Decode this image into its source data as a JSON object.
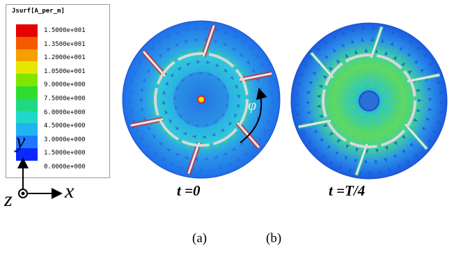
{
  "legend": {
    "title": "Jsurf[A_per_m]",
    "ticks": [
      "1.5000e+001",
      "1.3500e+001",
      "1.2000e+001",
      "1.0500e+001",
      "9.0000e+000",
      "7.5000e+000",
      "6.0000e+000",
      "4.5000e+000",
      "3.0000e+000",
      "1.5000e+000",
      "0.0000e+000"
    ],
    "colors": [
      "#e60000",
      "#f55a00",
      "#f5a000",
      "#e6e600",
      "#80e600",
      "#30dc30",
      "#20d880",
      "#20d8c8",
      "#20b4f0",
      "#1e78ff",
      "#0a28ff"
    ]
  },
  "axes": {
    "y": "y",
    "x": "x",
    "z": "z"
  },
  "panels": [
    {
      "time_label": "t =0",
      "sub_label": "(a)",
      "angle_symbol": "φ"
    },
    {
      "time_label": "t =T/4",
      "sub_label": "(b)"
    }
  ],
  "colors": {
    "field_base": "#1e6ee8",
    "field_mid": "#30c0e0",
    "field_green": "#30d060",
    "hotspot": "#e62020",
    "ring": "#d8d8d8"
  }
}
